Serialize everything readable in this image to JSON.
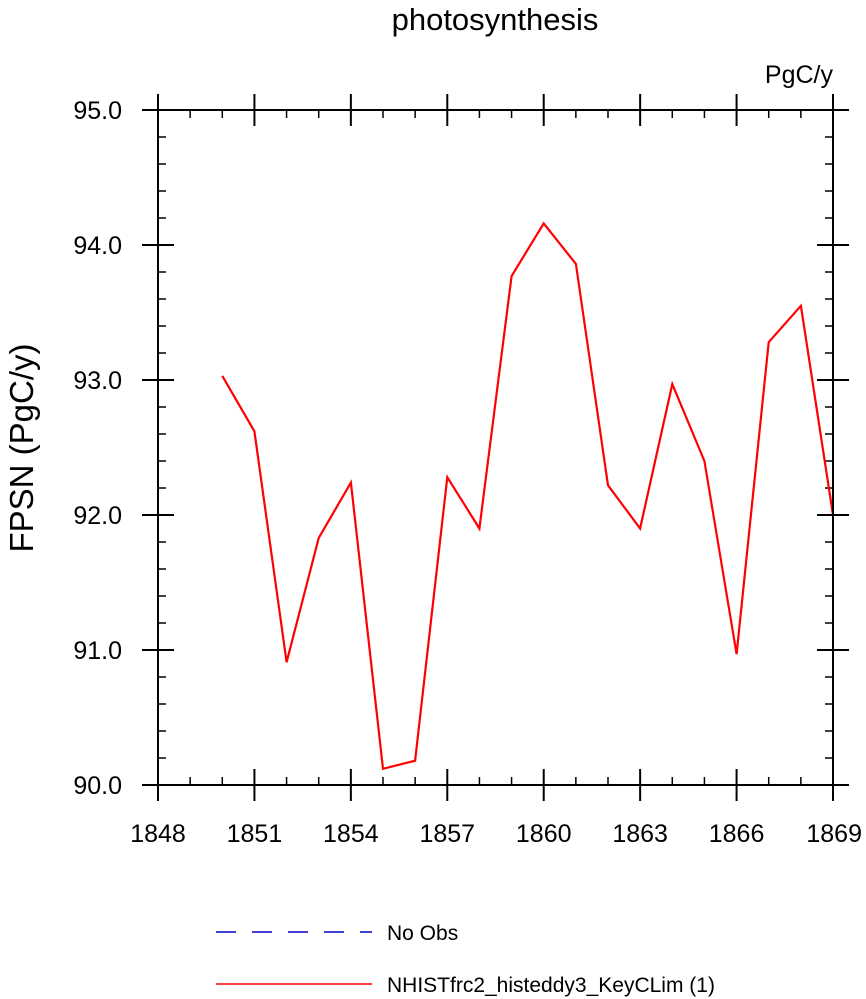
{
  "chart_data": {
    "type": "line",
    "title": "photosynthesis",
    "units_label": "PgC/y",
    "xlabel": "",
    "ylabel": "FPSN  (PgC/y)",
    "xlim": [
      1848,
      1869
    ],
    "ylim": [
      90.0,
      95.0
    ],
    "x_major_ticks": [
      1848,
      1851,
      1854,
      1857,
      1860,
      1863,
      1866,
      1869
    ],
    "x_tick_labels": [
      "1848",
      "1851",
      "1854",
      "1857",
      "1860",
      "1863",
      "1866",
      "1869"
    ],
    "y_major_ticks": [
      90.0,
      91.0,
      92.0,
      93.0,
      94.0,
      95.0
    ],
    "y_tick_labels": [
      "90.0",
      "91.0",
      "92.0",
      "93.0",
      "94.0",
      "95.0"
    ],
    "x_minor_step": 1,
    "y_minor_step": 0.2,
    "grid": false,
    "legend_position": "bottom",
    "series": [
      {
        "name": "No Obs",
        "color": "#0000cc",
        "dash": "dashed",
        "x": [],
        "values": []
      },
      {
        "name": "NHISTfrc2_histeddy3_KeyCLim (1)",
        "color": "#ff0000",
        "dash": "solid",
        "x": [
          1850,
          1851,
          1852,
          1853,
          1854,
          1855,
          1856,
          1857,
          1858,
          1859,
          1860,
          1861,
          1862,
          1863,
          1864,
          1865,
          1866,
          1867,
          1868,
          1869
        ],
        "values": [
          93.03,
          92.62,
          90.91,
          91.83,
          92.24,
          90.12,
          90.18,
          92.28,
          91.9,
          93.77,
          94.16,
          93.86,
          92.22,
          91.9,
          92.97,
          92.4,
          90.97,
          93.28,
          93.55,
          92.0
        ]
      }
    ]
  }
}
